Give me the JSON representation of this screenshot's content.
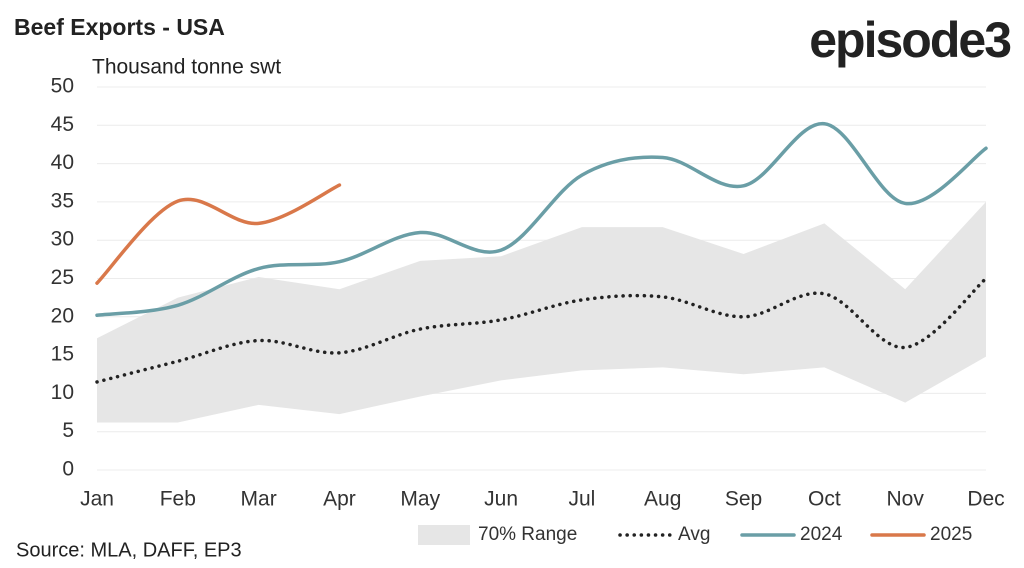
{
  "chart_data": {
    "type": "line",
    "title": "Beef Exports - USA",
    "subtitle": "Thousand tonne swt",
    "logo": "episode3",
    "source": "Source: MLA, DAFF, EP3",
    "categories": [
      "Jan",
      "Feb",
      "Mar",
      "Apr",
      "May",
      "Jun",
      "Jul",
      "Aug",
      "Sep",
      "Oct",
      "Nov",
      "Dec"
    ],
    "ylim": [
      0,
      50
    ],
    "yticks": [
      0,
      5,
      10,
      15,
      20,
      25,
      30,
      35,
      40,
      45,
      50
    ],
    "grid": true,
    "range": {
      "name": "70% Range",
      "color": "#e6e6e6",
      "high": [
        17.2,
        22.5,
        25.2,
        23.6,
        27.3,
        27.9,
        31.7,
        31.7,
        28.2,
        32.2,
        23.6,
        35.0
      ],
      "low": [
        6.2,
        6.2,
        8.5,
        7.3,
        9.6,
        11.7,
        13.0,
        13.4,
        12.5,
        13.4,
        8.8,
        14.8
      ]
    },
    "series": [
      {
        "name": "Avg",
        "color": "#222222",
        "style": "dotted",
        "values": [
          11.5,
          14.2,
          16.9,
          15.3,
          18.4,
          19.6,
          22.2,
          22.6,
          20.0,
          23.0,
          16.0,
          25.0
        ]
      },
      {
        "name": "2024",
        "color": "#6a9ea6",
        "style": "solid",
        "values": [
          20.2,
          21.5,
          26.3,
          27.2,
          31.0,
          28.7,
          38.5,
          40.8,
          37.1,
          45.2,
          34.8,
          42.0
        ]
      },
      {
        "name": "2025",
        "color": "#d9784a",
        "style": "solid",
        "values": [
          24.4,
          35.1,
          32.2,
          37.2,
          null,
          null,
          null,
          null,
          null,
          null,
          null,
          null
        ]
      }
    ]
  }
}
